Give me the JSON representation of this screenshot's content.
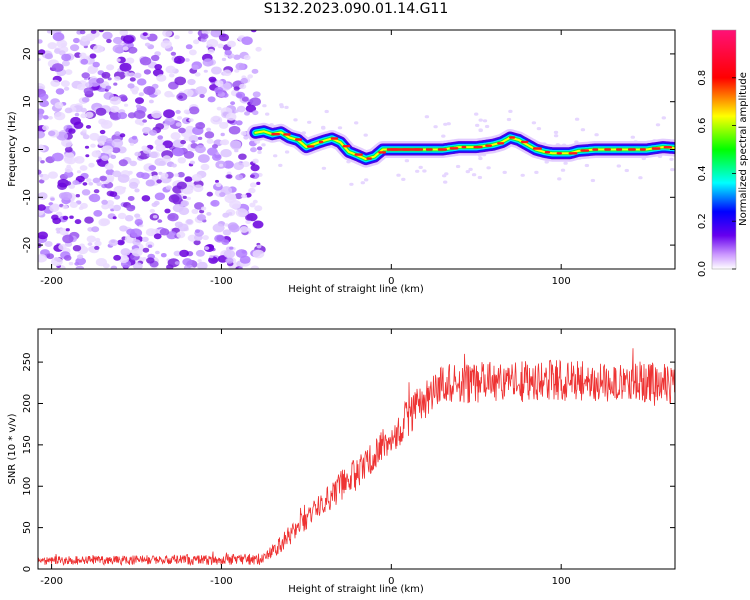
{
  "title": "S132.2023.090.01.14.G11",
  "chart_data": [
    {
      "type": "heatmap",
      "name": "spectrogram",
      "xlabel": "Height of straight line (km)",
      "ylabel": "Frequency (Hz)",
      "xlim": [
        -208,
        167
      ],
      "ylim": [
        -25,
        25
      ],
      "xticks": [
        -200,
        -100,
        0,
        100
      ],
      "yticks": [
        -20,
        -10,
        0,
        10,
        20
      ],
      "noise_region_x": [
        -208,
        -77
      ],
      "ridge": {
        "x": [
          -80,
          -75,
          -70,
          -65,
          -60,
          -55,
          -50,
          -45,
          -40,
          -35,
          -30,
          -25,
          -20,
          -15,
          -10,
          -5,
          0,
          5,
          10,
          20,
          30,
          40,
          50,
          60,
          65,
          70,
          75,
          80,
          85,
          90,
          95,
          100,
          105,
          110,
          120,
          130,
          140,
          150,
          160,
          167
        ],
        "freq": [
          3.5,
          3.8,
          3.2,
          3.6,
          2.5,
          2.0,
          0.5,
          1.2,
          1.8,
          2.3,
          1.5,
          -0.5,
          -1.2,
          -2.0,
          -1.5,
          0.0,
          0.0,
          0.0,
          0.0,
          0.0,
          0.0,
          0.5,
          0.5,
          1.0,
          1.5,
          2.5,
          2.0,
          1.0,
          0.0,
          -0.5,
          -0.8,
          -0.8,
          -0.8,
          -0.3,
          0.0,
          0.0,
          0.0,
          0.0,
          0.5,
          0.3
        ]
      },
      "colorbar": {
        "label": "Normalized spectral amplitude",
        "range": [
          0.0,
          1.0
        ],
        "ticks": [
          "0.0",
          "0.2",
          "0.4",
          "0.6",
          "0.8"
        ],
        "tick_values": [
          0.0,
          0.2,
          0.4,
          0.6,
          0.8
        ]
      }
    },
    {
      "type": "line",
      "name": "snr",
      "xlabel": "Height of straight line (km)",
      "ylabel": "SNR (10 * v/v)",
      "xlim": [
        -208,
        167
      ],
      "ylim": [
        0,
        290
      ],
      "xticks": [
        -200,
        -100,
        0,
        100
      ],
      "yticks": [
        0,
        50,
        100,
        150,
        200,
        250
      ],
      "color": "#ee3333",
      "trend": {
        "x": [
          -208,
          -75,
          -60,
          -45,
          -30,
          -15,
          0,
          15,
          25,
          35,
          50,
          100,
          167
        ],
        "y": [
          10,
          12,
          40,
          70,
          100,
          125,
          160,
          195,
          215,
          225,
          225,
          228,
          225
        ]
      },
      "noise_amplitude": {
        "x": [
          -208,
          -75,
          -60,
          -30,
          0,
          30,
          167
        ],
        "y": [
          5,
          7,
          12,
          18,
          22,
          25,
          25
        ]
      }
    }
  ]
}
